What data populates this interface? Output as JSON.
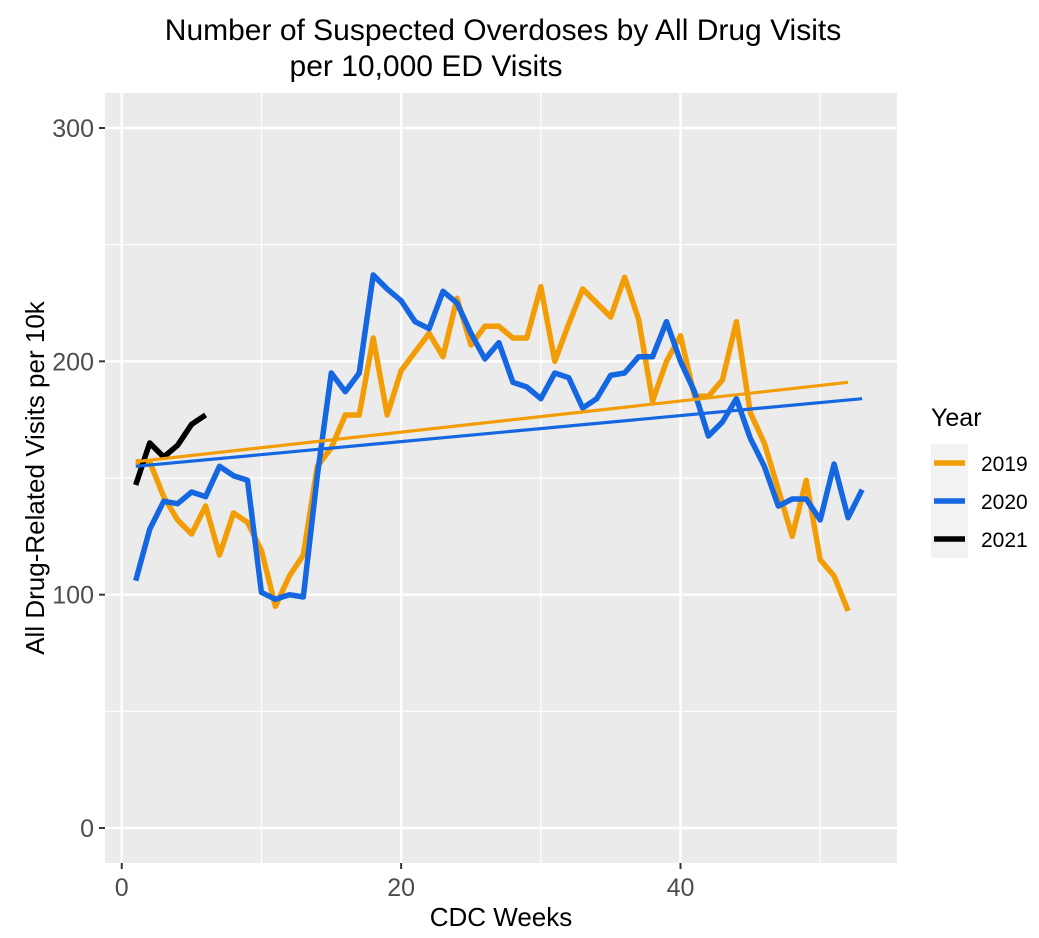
{
  "chart_data": {
    "type": "line",
    "title_line1": "Number of Suspected Overdoses by All Drug Visits",
    "title_line2": "per 10,000 ED Visits",
    "xlabel": "CDC Weeks",
    "ylabel": "All Drug-Related Visits per 10k",
    "xlim": [
      -1.2,
      55.5
    ],
    "ylim": [
      -15,
      315
    ],
    "x_ticks": [
      0,
      20,
      40
    ],
    "y_ticks": [
      0,
      100,
      200,
      300
    ],
    "grid": true,
    "legend": {
      "title": "Year",
      "placement": "right",
      "entries": [
        "2019",
        "2020",
        "2021"
      ]
    },
    "series": [
      {
        "name": "2019",
        "color": "#F29D05",
        "x": [
          1,
          2,
          3,
          4,
          5,
          6,
          7,
          8,
          9,
          10,
          11,
          12,
          13,
          14,
          15,
          16,
          17,
          18,
          19,
          20,
          21,
          22,
          23,
          24,
          25,
          26,
          27,
          28,
          29,
          30,
          31,
          32,
          33,
          34,
          35,
          36,
          37,
          38,
          39,
          40,
          41,
          42,
          43,
          44,
          45,
          46,
          47,
          48,
          49,
          50,
          51,
          52
        ],
        "y": [
          157,
          157,
          142,
          132,
          126,
          138,
          117,
          135,
          131,
          119,
          95,
          108,
          117,
          155,
          163,
          177,
          177,
          210,
          177,
          196,
          204,
          212,
          202,
          227,
          207,
          215,
          215,
          210,
          210,
          232,
          200,
          216,
          231,
          225,
          219,
          236,
          218,
          183,
          200,
          211,
          185,
          185,
          192,
          217,
          178,
          165,
          145,
          125,
          149,
          115,
          108,
          93
        ],
        "trend": [
          157,
          191
        ]
      },
      {
        "name": "2020",
        "color": "#1467E0",
        "x": [
          1,
          2,
          3,
          4,
          5,
          6,
          7,
          8,
          9,
          10,
          11,
          12,
          13,
          14,
          15,
          16,
          17,
          18,
          19,
          20,
          21,
          22,
          23,
          24,
          25,
          26,
          27,
          28,
          29,
          30,
          31,
          32,
          33,
          34,
          35,
          36,
          37,
          38,
          39,
          40,
          41,
          42,
          43,
          44,
          45,
          46,
          47,
          48,
          49,
          50,
          51,
          52,
          53
        ],
        "y": [
          106,
          128,
          140,
          139,
          144,
          142,
          155,
          151,
          149,
          101,
          98,
          100,
          99,
          151,
          195,
          187,
          195,
          237,
          231,
          226,
          217,
          214,
          230,
          225,
          212,
          201,
          208,
          191,
          189,
          184,
          195,
          193,
          180,
          184,
          194,
          195,
          202,
          202,
          217,
          200,
          187,
          168,
          174,
          184,
          167,
          155,
          138,
          141,
          141,
          132,
          156,
          133,
          145
        ],
        "trend": [
          155,
          184
        ]
      },
      {
        "name": "2021",
        "color": "#000000",
        "x": [
          1,
          2,
          3,
          4,
          5,
          6
        ],
        "y": [
          147,
          165,
          159,
          164,
          173,
          177
        ]
      }
    ]
  }
}
